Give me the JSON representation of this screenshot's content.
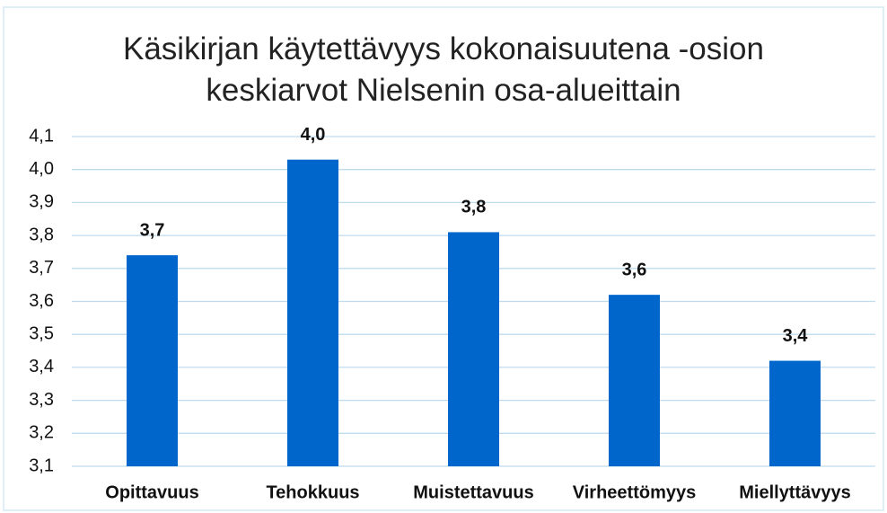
{
  "chart_data": {
    "type": "bar",
    "title": "Käsikirjan käytettävyys kokonaisuutena -osion keskiarvot Nielsenin osa-alueittain",
    "categories": [
      "Opittavuus",
      "Tehokkuus",
      "Muistettavuus",
      "Virheettömyys",
      "Miellyttävyys"
    ],
    "values": [
      3.74,
      4.03,
      3.81,
      3.62,
      3.42
    ],
    "value_labels": [
      "3,7",
      "4,0",
      "3,8",
      "3,6",
      "3,4"
    ],
    "color": "#0066cc",
    "ylim": [
      3.1,
      4.1
    ],
    "yticks": [
      {
        "value": 3.1,
        "label": "3,1"
      },
      {
        "value": 3.2,
        "label": "3,2"
      },
      {
        "value": 3.3,
        "label": "3,3"
      },
      {
        "value": 3.4,
        "label": "3,4"
      },
      {
        "value": 3.5,
        "label": "3,5"
      },
      {
        "value": 3.6,
        "label": "3,6"
      },
      {
        "value": 3.7,
        "label": "3,7"
      },
      {
        "value": 3.8,
        "label": "3,8"
      },
      {
        "value": 3.9,
        "label": "3,9"
      },
      {
        "value": 4.0,
        "label": "4,0"
      },
      {
        "value": 4.1,
        "label": "4,1"
      }
    ],
    "grid": true
  }
}
